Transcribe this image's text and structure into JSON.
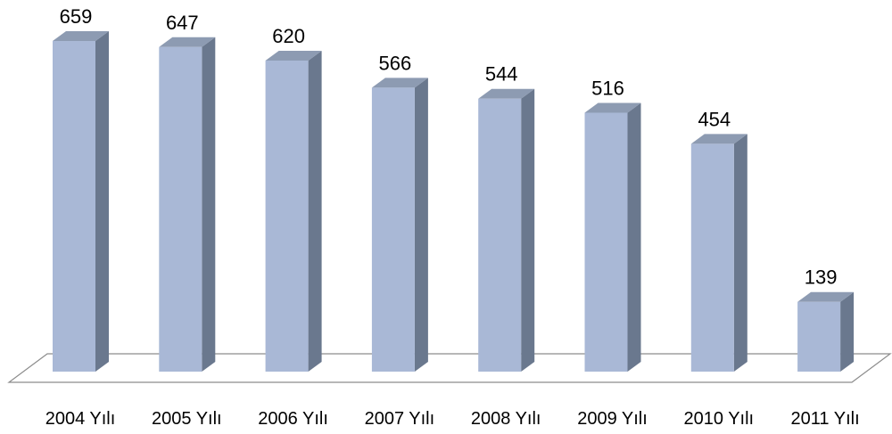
{
  "chart_data": {
    "type": "bar",
    "categories": [
      "2004 Yılı",
      "2005 Yılı",
      "2006 Yılı",
      "2007 Yılı",
      "2008 Yılı",
      "2009 Yılı",
      "2010 Yılı",
      "2011 Yılı"
    ],
    "values": [
      659,
      647,
      620,
      566,
      544,
      516,
      454,
      139
    ],
    "title": "",
    "xlabel": "",
    "ylabel": "",
    "ylim": [
      0,
      659
    ],
    "grid": false,
    "legend": "none",
    "style": "3d-column",
    "colors": {
      "bar_front": "#a9b8d6",
      "bar_side": "#6a788e",
      "bar_top": "#8d9bb2",
      "floor_stroke": "#8c8c8c"
    }
  }
}
